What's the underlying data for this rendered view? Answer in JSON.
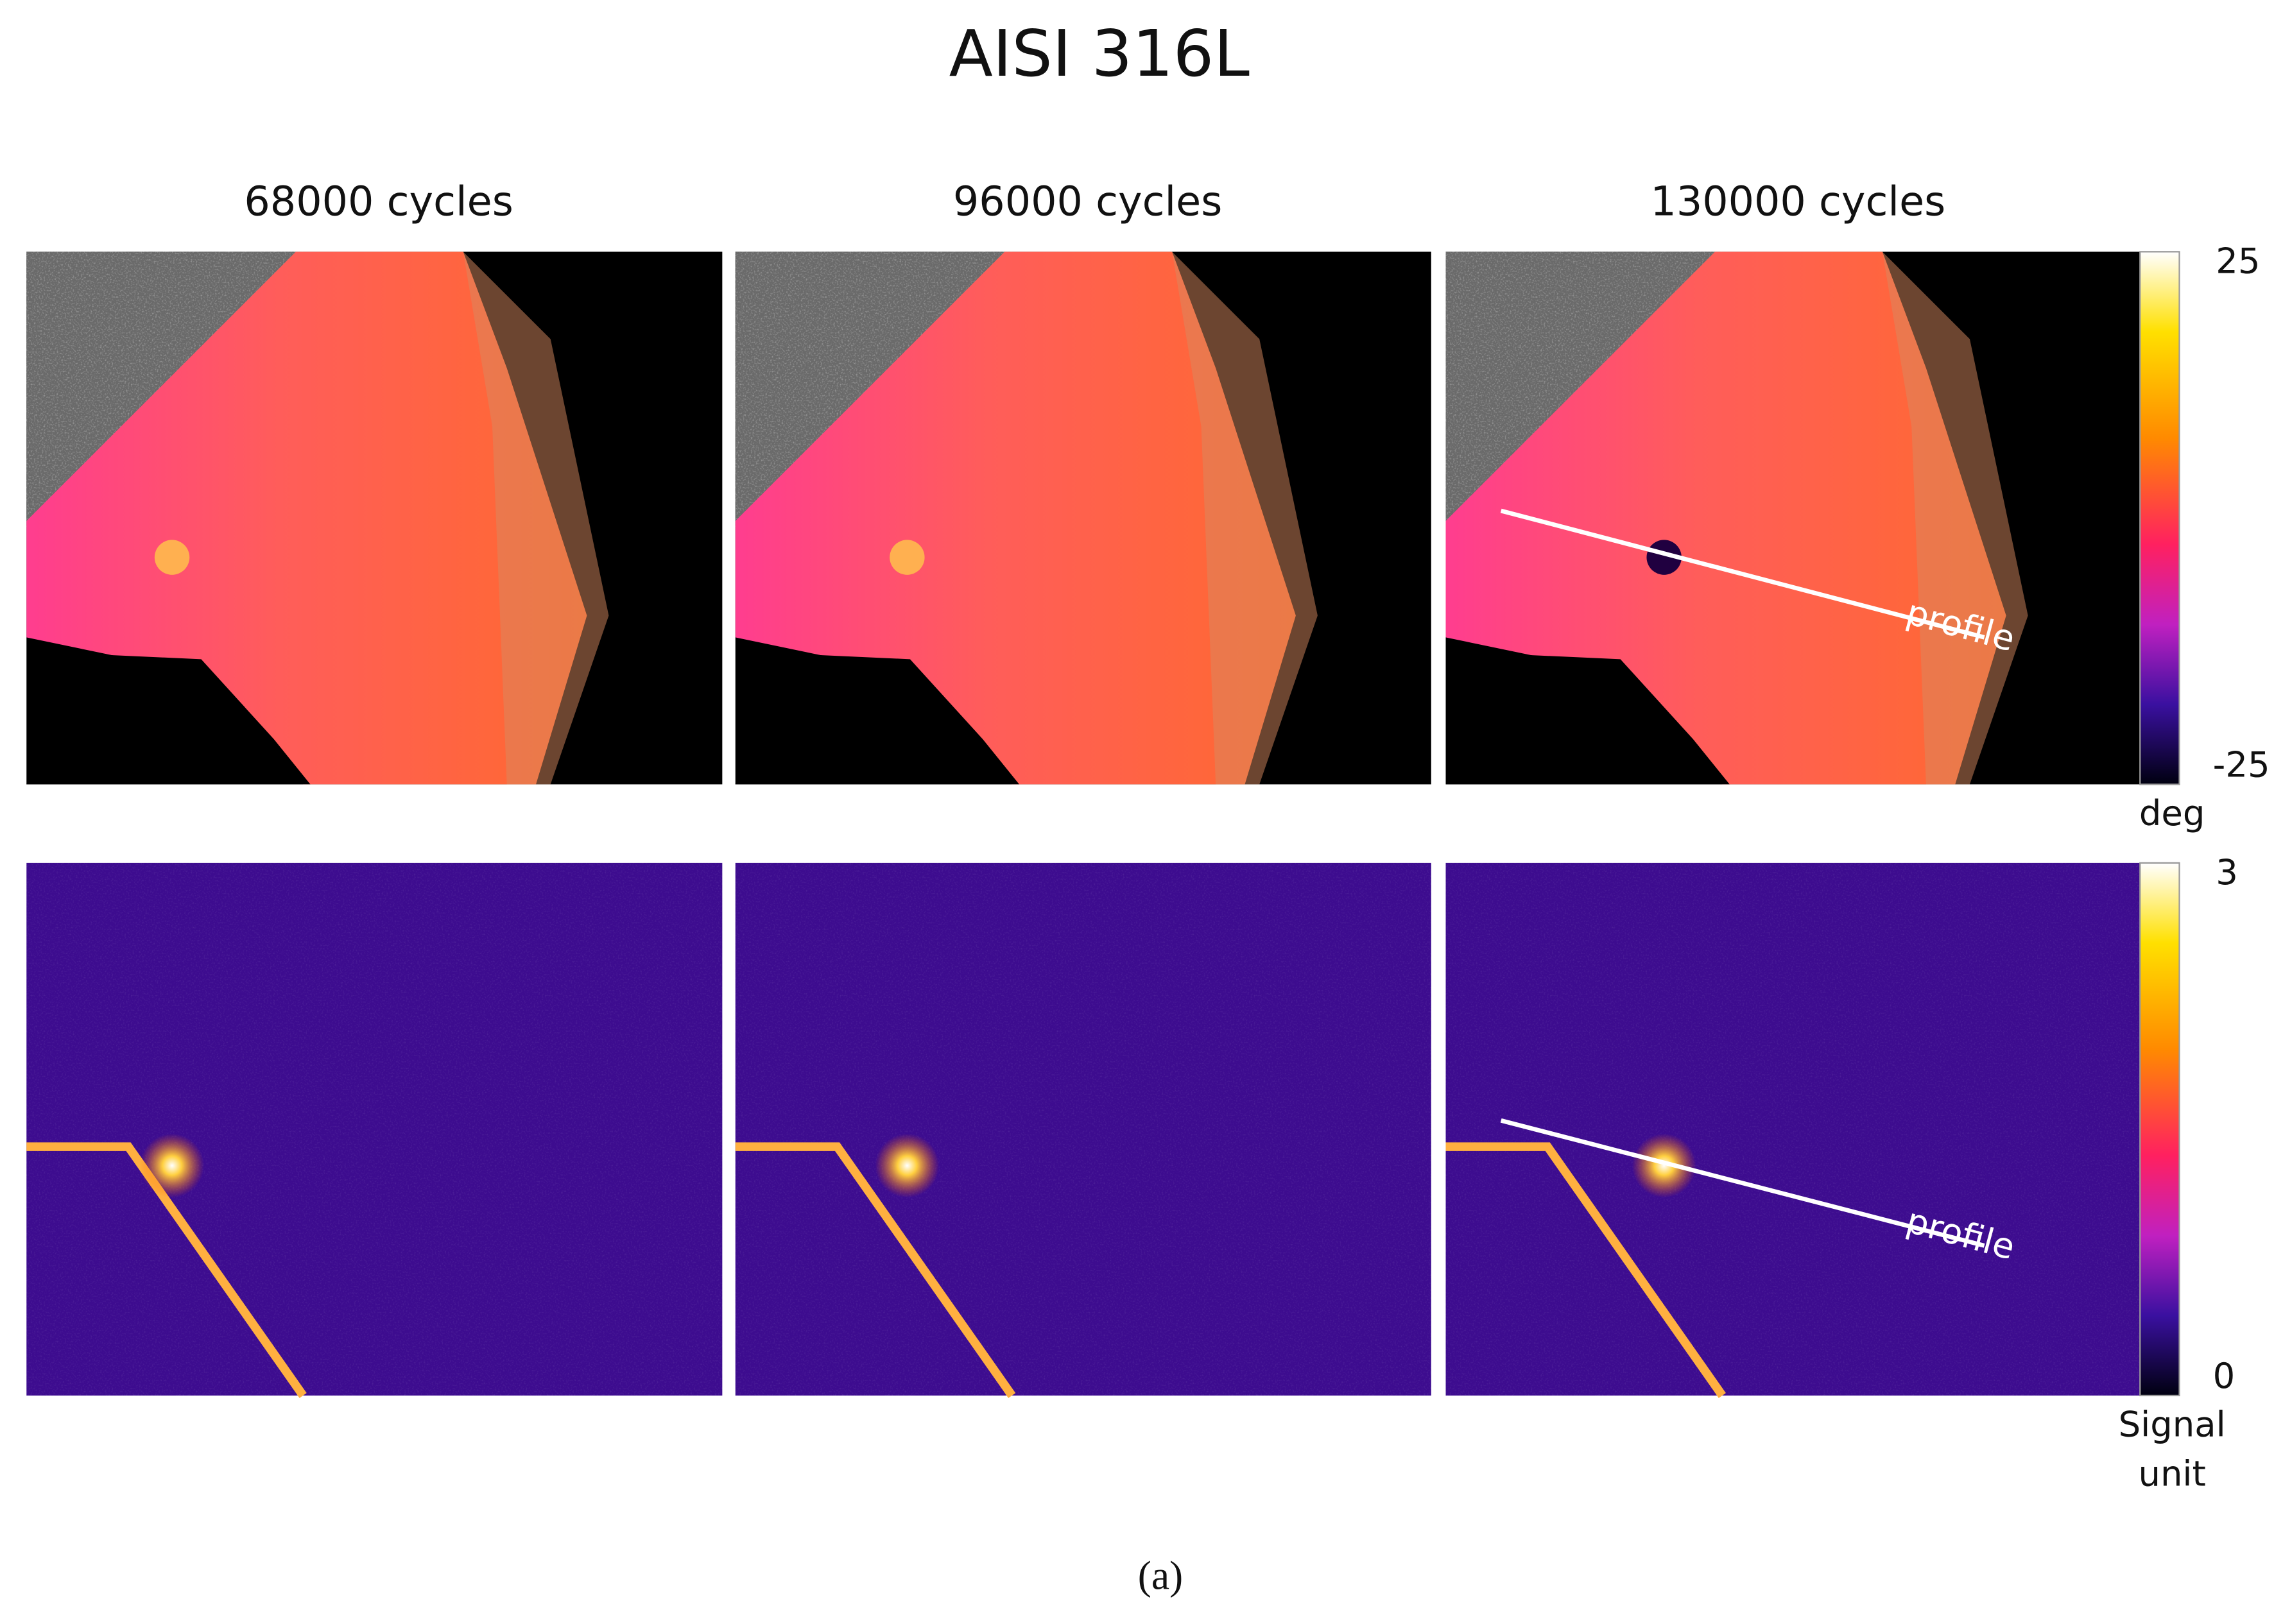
{
  "title": "AISI 316L",
  "columns": [
    "68000 cycles",
    "96000 cycles",
    "130000 cycles"
  ],
  "rows": [
    {
      "colorbar": {
        "max": "25",
        "min": "-25",
        "unit": "deg"
      },
      "annotation": "profile"
    },
    {
      "colorbar": {
        "max": "3",
        "min": "0",
        "unit": "Signal unit"
      },
      "annotation": "profile"
    }
  ],
  "caption": "(a)"
}
